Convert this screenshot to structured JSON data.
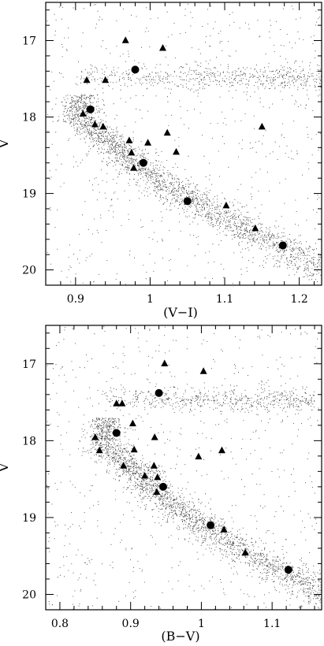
{
  "chart_data": [
    {
      "type": "scatter",
      "xlabel": "(V−I)",
      "ylabel": "V",
      "xlim": [
        0.86,
        1.23
      ],
      "ylim": [
        20.2,
        16.5
      ],
      "y_inverted": true,
      "x_ticks": [
        0.9,
        1.0,
        1.1,
        1.2
      ],
      "x_tick_labels": [
        "0.9",
        "1",
        "1.1",
        "1.2"
      ],
      "y_ticks": [
        17,
        18,
        19,
        20
      ],
      "y_tick_labels": [
        "17",
        "18",
        "19",
        "20"
      ],
      "grid": false,
      "series": [
        {
          "marker": "triangle",
          "points": [
            [
              0.967,
              17.0
            ],
            [
              1.017,
              17.1
            ],
            [
              0.915,
              17.52
            ],
            [
              0.94,
              17.52
            ],
            [
              0.91,
              17.96
            ],
            [
              0.926,
              18.1
            ],
            [
              0.937,
              18.13
            ],
            [
              1.15,
              18.13
            ],
            [
              1.023,
              18.21
            ],
            [
              0.972,
              18.31
            ],
            [
              0.997,
              18.34
            ],
            [
              0.975,
              18.47
            ],
            [
              1.035,
              18.46
            ],
            [
              0.978,
              18.67
            ],
            [
              1.102,
              19.16
            ],
            [
              1.141,
              19.46
            ]
          ]
        },
        {
          "marker": "circle",
          "points": [
            [
              0.98,
              17.38
            ],
            [
              0.92,
              17.9
            ],
            [
              0.991,
              18.6
            ],
            [
              1.05,
              19.1
            ],
            [
              1.178,
              19.68
            ]
          ]
        }
      ]
    },
    {
      "type": "scatter",
      "xlabel": "(B−V)",
      "ylabel": "V",
      "xlim": [
        0.78,
        1.17
      ],
      "ylim": [
        20.2,
        16.5
      ],
      "y_inverted": true,
      "x_ticks": [
        0.8,
        0.9,
        1.0,
        1.1
      ],
      "x_tick_labels": [
        "0.8",
        "0.9",
        "1",
        "1.1"
      ],
      "y_ticks": [
        17,
        18,
        19,
        20
      ],
      "y_tick_labels": [
        "17",
        "18",
        "19",
        "20"
      ],
      "grid": false,
      "series": [
        {
          "marker": "triangle",
          "points": [
            [
              0.948,
              17.0
            ],
            [
              1.003,
              17.1
            ],
            [
              0.88,
              17.52
            ],
            [
              0.888,
              17.52
            ],
            [
              0.903,
              17.78
            ],
            [
              0.85,
              17.96
            ],
            [
              0.934,
              17.96
            ],
            [
              0.856,
              18.13
            ],
            [
              0.905,
              18.12
            ],
            [
              1.029,
              18.13
            ],
            [
              0.996,
              18.21
            ],
            [
              0.89,
              18.33
            ],
            [
              0.933,
              18.33
            ],
            [
              0.92,
              18.46
            ],
            [
              0.938,
              18.48
            ],
            [
              0.937,
              18.67
            ],
            [
              1.032,
              19.16
            ],
            [
              1.062,
              19.46
            ]
          ]
        },
        {
          "marker": "circle",
          "points": [
            [
              0.94,
              17.38
            ],
            [
              0.88,
              17.9
            ],
            [
              0.946,
              18.6
            ],
            [
              1.013,
              19.1
            ],
            [
              1.123,
              19.68
            ]
          ]
        }
      ]
    }
  ]
}
